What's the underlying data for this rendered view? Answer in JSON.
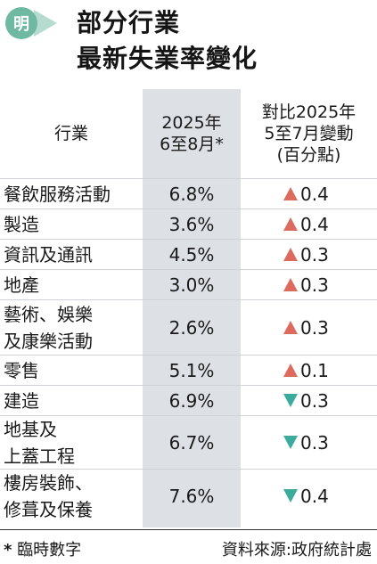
{
  "header": {
    "logo_char": "明",
    "title_line1": "部分行業",
    "title_line2": "最新失業率變化"
  },
  "table": {
    "col_industry": "行業",
    "col_rate_line1": "2025年",
    "col_rate_line2": "6至8月*",
    "col_change_line1": "對比2025年",
    "col_change_line2": "5至7月變動",
    "col_change_line3": "(百分點)",
    "rows": [
      {
        "name1": "餐飲服務活動",
        "name2": "",
        "rate": "6.8%",
        "direction": "up",
        "change": "0.4"
      },
      {
        "name1": "製造",
        "name2": "",
        "rate": "3.6%",
        "direction": "up",
        "change": "0.4"
      },
      {
        "name1": "資訊及通訊",
        "name2": "",
        "rate": "4.5%",
        "direction": "up",
        "change": "0.3"
      },
      {
        "name1": "地產",
        "name2": "",
        "rate": "3.0%",
        "direction": "up",
        "change": "0.3"
      },
      {
        "name1": "藝術、娛樂",
        "name2": "及康樂活動",
        "rate": "2.6%",
        "direction": "up",
        "change": "0.3"
      },
      {
        "name1": "零售",
        "name2": "",
        "rate": "5.1%",
        "direction": "up",
        "change": "0.1"
      },
      {
        "name1": "建造",
        "name2": "",
        "rate": "6.9%",
        "direction": "down",
        "change": "0.3"
      },
      {
        "name1": "地基及",
        "name2": "上蓋工程",
        "rate": "6.7%",
        "direction": "down",
        "change": "0.3"
      },
      {
        "name1": "樓房裝飾、",
        "name2": "修葺及保養",
        "rate": "7.6%",
        "direction": "down",
        "change": "0.4"
      }
    ]
  },
  "footer": {
    "note_star": "*",
    "note_text": "臨時數字",
    "source": "資料來源:政府統計處"
  },
  "colors": {
    "up": "#dc6a5d",
    "down": "#3bab9b",
    "logo": "#6fb9a3",
    "column_shade": "#dde1e5"
  }
}
